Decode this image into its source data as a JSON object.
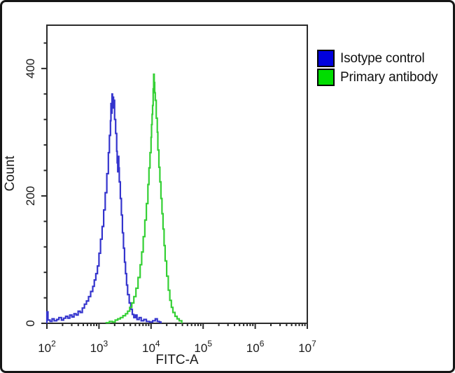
{
  "colors": {
    "frame_border": "#161616",
    "axis": "#2b2b2b",
    "text": "#1a1a1a",
    "background": "#ffffff"
  },
  "chart_data": {
    "type": "line",
    "subtype": "flow-cytometry-overlay-histogram",
    "title": "",
    "xlabel": "FITC-A",
    "ylabel": "Count",
    "x_scale": "log10",
    "x_range": [
      100,
      10000000
    ],
    "x_ticks_exponents": [
      2,
      3,
      4,
      5,
      6,
      7
    ],
    "y_major_ticks": [
      0,
      200,
      400
    ],
    "y_minor_step": 40,
    "y_max": 468,
    "grid": false,
    "legend_position": "top-right",
    "legend": [
      {
        "label": "Isotype control",
        "color": "#0000dd"
      },
      {
        "label": "Primary antibody",
        "color": "#00dd00"
      }
    ],
    "series": [
      {
        "name": "Isotype control",
        "color": "#3434cd",
        "points_log10x_count": [
          [
            2.0,
            18
          ],
          [
            2.02,
            5
          ],
          [
            2.06,
            3
          ],
          [
            2.1,
            7
          ],
          [
            2.14,
            4
          ],
          [
            2.19,
            6
          ],
          [
            2.23,
            9
          ],
          [
            2.28,
            5
          ],
          [
            2.32,
            8
          ],
          [
            2.36,
            11
          ],
          [
            2.4,
            8
          ],
          [
            2.44,
            13
          ],
          [
            2.48,
            10
          ],
          [
            2.52,
            15
          ],
          [
            2.56,
            13
          ],
          [
            2.6,
            19
          ],
          [
            2.64,
            17
          ],
          [
            2.68,
            24
          ],
          [
            2.72,
            30
          ],
          [
            2.76,
            35
          ],
          [
            2.8,
            42
          ],
          [
            2.84,
            50
          ],
          [
            2.88,
            58
          ],
          [
            2.91,
            68
          ],
          [
            2.94,
            78
          ],
          [
            2.97,
            90
          ],
          [
            3.0,
            110
          ],
          [
            3.03,
            132
          ],
          [
            3.06,
            152
          ],
          [
            3.09,
            178
          ],
          [
            3.12,
            205
          ],
          [
            3.15,
            235
          ],
          [
            3.18,
            268
          ],
          [
            3.2,
            295
          ],
          [
            3.22,
            318
          ],
          [
            3.23,
            345
          ],
          [
            3.24,
            330
          ],
          [
            3.25,
            360
          ],
          [
            3.26,
            342
          ],
          [
            3.27,
            355
          ],
          [
            3.28,
            338
          ],
          [
            3.29,
            350
          ],
          [
            3.3,
            320
          ],
          [
            3.32,
            298
          ],
          [
            3.34,
            270
          ],
          [
            3.35,
            252
          ],
          [
            3.36,
            238
          ],
          [
            3.37,
            262
          ],
          [
            3.38,
            244
          ],
          [
            3.39,
            222
          ],
          [
            3.41,
            196
          ],
          [
            3.43,
            170
          ],
          [
            3.45,
            142
          ],
          [
            3.47,
            118
          ],
          [
            3.49,
            96
          ],
          [
            3.51,
            78
          ],
          [
            3.53,
            60
          ],
          [
            3.55,
            45
          ],
          [
            3.58,
            32
          ],
          [
            3.61,
            22
          ],
          [
            3.64,
            14
          ],
          [
            3.67,
            9
          ],
          [
            3.7,
            13
          ],
          [
            3.73,
            6
          ],
          [
            3.77,
            9
          ],
          [
            3.81,
            4
          ],
          [
            3.86,
            6
          ],
          [
            3.91,
            3
          ],
          [
            3.97,
            2
          ],
          [
            4.03,
            4
          ],
          [
            4.08,
            7
          ],
          [
            4.12,
            3
          ],
          [
            4.16,
            2
          ],
          [
            4.19,
            1
          ]
        ]
      },
      {
        "name": "Primary antibody",
        "color": "#35d035",
        "points_log10x_count": [
          [
            3.14,
            1
          ],
          [
            3.2,
            3
          ],
          [
            3.26,
            2
          ],
          [
            3.31,
            5
          ],
          [
            3.36,
            7
          ],
          [
            3.41,
            9
          ],
          [
            3.46,
            12
          ],
          [
            3.51,
            15
          ],
          [
            3.55,
            19
          ],
          [
            3.59,
            25
          ],
          [
            3.63,
            32
          ],
          [
            3.67,
            42
          ],
          [
            3.71,
            55
          ],
          [
            3.75,
            72
          ],
          [
            3.79,
            92
          ],
          [
            3.82,
            112
          ],
          [
            3.85,
            136
          ],
          [
            3.88,
            162
          ],
          [
            3.91,
            188
          ],
          [
            3.94,
            218
          ],
          [
            3.96,
            244
          ],
          [
            3.98,
            268
          ],
          [
            4.0,
            292
          ],
          [
            4.01,
            312
          ],
          [
            4.02,
            328
          ],
          [
            4.03,
            342
          ],
          [
            4.04,
            368
          ],
          [
            4.05,
            391
          ],
          [
            4.06,
            378
          ],
          [
            4.07,
            362
          ],
          [
            4.08,
            350
          ],
          [
            4.1,
            322
          ],
          [
            4.12,
            300
          ],
          [
            4.13,
            272
          ],
          [
            4.15,
            245
          ],
          [
            4.17,
            222
          ],
          [
            4.19,
            196
          ],
          [
            4.21,
            172
          ],
          [
            4.23,
            148
          ],
          [
            4.25,
            122
          ],
          [
            4.27,
            98
          ],
          [
            4.3,
            74
          ],
          [
            4.33,
            52
          ],
          [
            4.36,
            36
          ],
          [
            4.39,
            25
          ],
          [
            4.42,
            17
          ],
          [
            4.46,
            11
          ],
          [
            4.5,
            7
          ],
          [
            4.54,
            4
          ],
          [
            4.59,
            1
          ]
        ]
      }
    ]
  }
}
